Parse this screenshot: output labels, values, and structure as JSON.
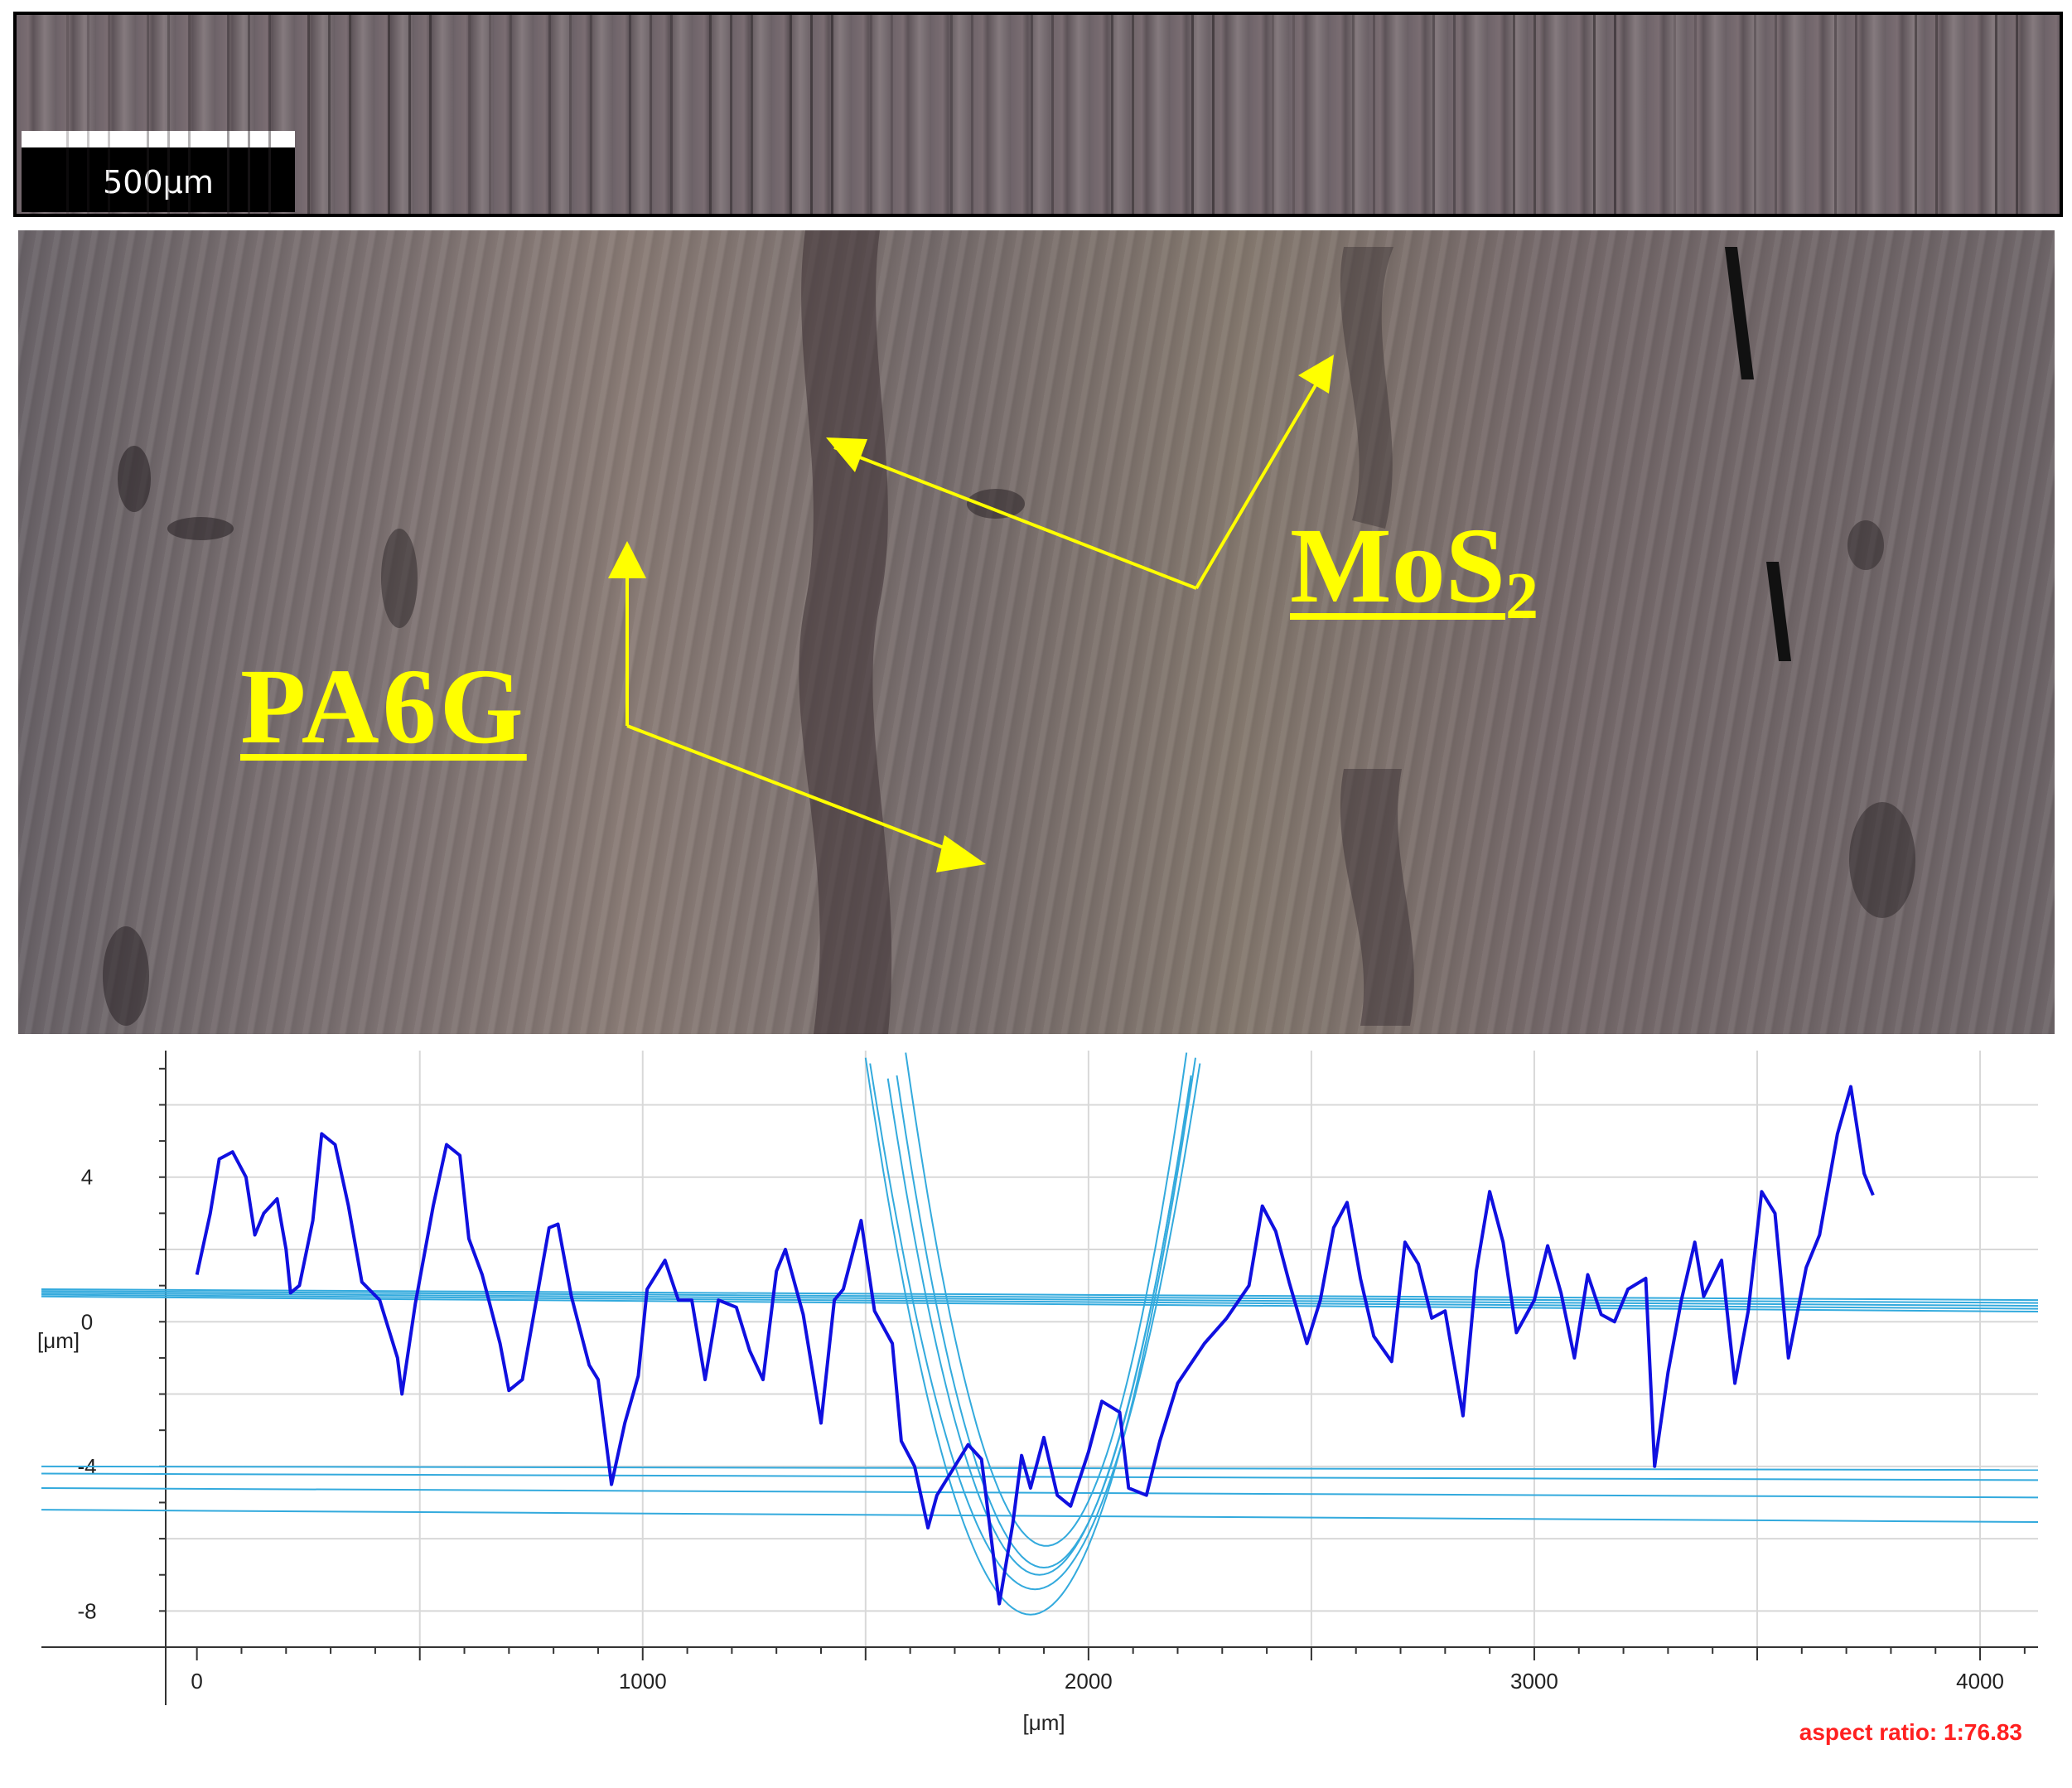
{
  "scale_bar": {
    "label": "500μm"
  },
  "annotations": {
    "pa6g": "PA6G",
    "mos2_base": "MoS",
    "mos2_sub": "2"
  },
  "chart_data": {
    "type": "line",
    "xlabel": "[μm]",
    "ylabel": "[μm]",
    "xlim": [
      -70,
      4130
    ],
    "ylim": [
      -9,
      7.5
    ],
    "x_ticks": [
      0,
      1000,
      2000,
      3000,
      4000
    ],
    "y_ticks": [
      -8,
      -4,
      0,
      4
    ],
    "grid": true,
    "aspect_ratio_label": "aspect ratio: 1:76.83",
    "series": [
      {
        "color": "#1010e0",
        "points": [
          [
            0,
            1.3
          ],
          [
            30,
            3
          ],
          [
            50,
            4.5
          ],
          [
            80,
            4.7
          ],
          [
            110,
            4
          ],
          [
            130,
            2.4
          ],
          [
            150,
            3
          ],
          [
            180,
            3.4
          ],
          [
            200,
            2
          ],
          [
            210,
            0.8
          ],
          [
            230,
            1
          ],
          [
            260,
            2.8
          ],
          [
            280,
            5.2
          ],
          [
            310,
            4.9
          ],
          [
            340,
            3.2
          ],
          [
            370,
            1.1
          ],
          [
            410,
            0.6
          ],
          [
            450,
            -1
          ],
          [
            460,
            -2
          ],
          [
            490,
            0.5
          ],
          [
            530,
            3.2
          ],
          [
            560,
            4.9
          ],
          [
            590,
            4.6
          ],
          [
            610,
            2.3
          ],
          [
            640,
            1.3
          ],
          [
            680,
            -0.6
          ],
          [
            700,
            -1.9
          ],
          [
            730,
            -1.6
          ],
          [
            760,
            0.5
          ],
          [
            790,
            2.6
          ],
          [
            810,
            2.7
          ],
          [
            840,
            0.7
          ],
          [
            880,
            -1.2
          ],
          [
            900,
            -1.6
          ],
          [
            930,
            -4.5
          ],
          [
            960,
            -2.8
          ],
          [
            990,
            -1.5
          ],
          [
            1010,
            0.9
          ],
          [
            1050,
            1.7
          ],
          [
            1080,
            0.6
          ],
          [
            1110,
            0.6
          ],
          [
            1140,
            -1.6
          ],
          [
            1170,
            0.6
          ],
          [
            1210,
            0.4
          ],
          [
            1240,
            -0.8
          ],
          [
            1270,
            -1.6
          ],
          [
            1300,
            1.4
          ],
          [
            1320,
            2
          ],
          [
            1360,
            0.2
          ],
          [
            1400,
            -2.8
          ],
          [
            1430,
            0.6
          ],
          [
            1450,
            0.9
          ],
          [
            1490,
            2.8
          ],
          [
            1520,
            0.3
          ],
          [
            1560,
            -0.6
          ],
          [
            1580,
            -3.3
          ],
          [
            1610,
            -4
          ],
          [
            1640,
            -5.7
          ],
          [
            1660,
            -4.8
          ],
          [
            1700,
            -4
          ],
          [
            1730,
            -3.4
          ],
          [
            1760,
            -3.8
          ],
          [
            1800,
            -7.8
          ],
          [
            1830,
            -5.6
          ],
          [
            1850,
            -3.7
          ],
          [
            1870,
            -4.6
          ],
          [
            1900,
            -3.2
          ],
          [
            1930,
            -4.8
          ],
          [
            1960,
            -5.1
          ],
          [
            2000,
            -3.6
          ],
          [
            2030,
            -2.2
          ],
          [
            2070,
            -2.5
          ],
          [
            2090,
            -4.6
          ],
          [
            2130,
            -4.8
          ],
          [
            2160,
            -3.3
          ],
          [
            2200,
            -1.7
          ],
          [
            2260,
            -0.6
          ],
          [
            2310,
            0.1
          ],
          [
            2360,
            1
          ],
          [
            2390,
            3.2
          ],
          [
            2420,
            2.5
          ],
          [
            2450,
            1.1
          ],
          [
            2490,
            -0.6
          ],
          [
            2520,
            0.6
          ],
          [
            2550,
            2.6
          ],
          [
            2580,
            3.3
          ],
          [
            2610,
            1.2
          ],
          [
            2640,
            -0.4
          ],
          [
            2680,
            -1.1
          ],
          [
            2710,
            2.2
          ],
          [
            2740,
            1.6
          ],
          [
            2770,
            0.1
          ],
          [
            2800,
            0.3
          ],
          [
            2840,
            -2.6
          ],
          [
            2870,
            1.4
          ],
          [
            2900,
            3.6
          ],
          [
            2930,
            2.2
          ],
          [
            2960,
            -0.3
          ],
          [
            3000,
            0.6
          ],
          [
            3030,
            2.1
          ],
          [
            3060,
            0.8
          ],
          [
            3090,
            -1
          ],
          [
            3120,
            1.3
          ],
          [
            3150,
            0.2
          ],
          [
            3180,
            0
          ],
          [
            3210,
            0.9
          ],
          [
            3250,
            1.2
          ],
          [
            3270,
            -4
          ],
          [
            3300,
            -1.4
          ],
          [
            3330,
            0.6
          ],
          [
            3360,
            2.2
          ],
          [
            3380,
            0.7
          ],
          [
            3420,
            1.7
          ],
          [
            3450,
            -1.7
          ],
          [
            3480,
            0.3
          ],
          [
            3510,
            3.6
          ],
          [
            3540,
            3
          ],
          [
            3570,
            -1
          ],
          [
            3610,
            1.5
          ],
          [
            3640,
            2.4
          ],
          [
            3680,
            5.2
          ],
          [
            3710,
            6.5
          ],
          [
            3740,
            4.1
          ],
          [
            3760,
            3.5
          ]
        ]
      }
    ]
  }
}
